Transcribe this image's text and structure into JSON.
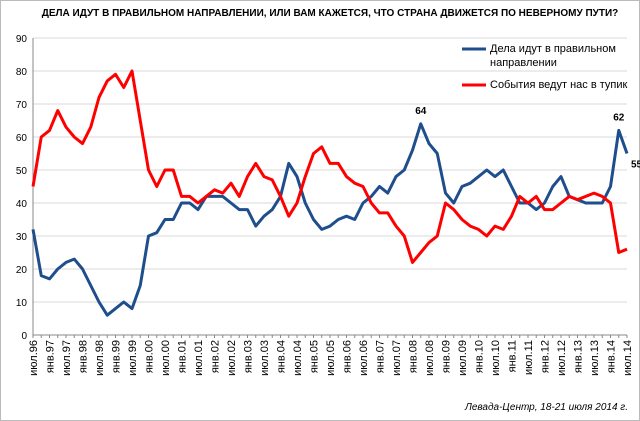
{
  "chart_data": {
    "type": "line",
    "title": "ДЕЛА ИДУТ В ПРАВИЛЬНОМ НАПРАВЛЕНИИ, ИЛИ ВАМ КАЖЕТСЯ, ЧТО СТРАНА ДВИЖЕТСЯ ПО НЕВЕРНОМУ ПУТИ?",
    "source": "Левада-Центр, 18-21 июля 2014 г.",
    "categories": [
      "июл.96",
      null,
      "янв.97",
      null,
      "июл.97",
      null,
      "янв.98",
      null,
      "июл.98",
      null,
      "янв.99",
      null,
      "июл.99",
      null,
      "янв.00",
      null,
      "июл.00",
      null,
      "янв.01",
      null,
      "июл.01",
      null,
      "янв.02",
      null,
      "июл.02",
      null,
      "янв.03",
      null,
      "июл.03",
      null,
      "янв.04",
      null,
      "июл.04",
      null,
      "янв.05",
      null,
      "июл.05",
      null,
      "янв.06",
      null,
      "июл.06",
      null,
      "янв.07",
      null,
      "июл.07",
      null,
      "янв.08",
      null,
      "июл.08",
      null,
      "янв.09",
      null,
      "июл.09",
      null,
      "янв.10",
      null,
      "июл.10",
      null,
      "янв.11",
      null,
      "июл.11",
      null,
      "янв.12",
      null,
      "июл.12",
      null,
      "янв.13",
      null,
      "июл.13",
      null,
      "янв.14",
      null,
      "июл.14"
    ],
    "series": [
      {
        "name": "Дела идут в правильном направлении",
        "color": "#1f4e8c",
        "values": [
          32,
          18,
          17,
          20,
          22,
          23,
          20,
          15,
          10,
          6,
          8,
          10,
          8,
          15,
          30,
          31,
          35,
          35,
          40,
          40,
          38,
          42,
          42,
          42,
          40,
          38,
          38,
          33,
          36,
          38,
          42,
          52,
          48,
          40,
          35,
          32,
          33,
          35,
          36,
          35,
          40,
          42,
          45,
          43,
          48,
          50,
          56,
          64,
          58,
          55,
          43,
          40,
          45,
          46,
          48,
          50,
          48,
          50,
          45,
          40,
          40,
          38,
          40,
          45,
          48,
          42,
          41,
          40,
          40,
          40,
          45,
          62,
          55
        ],
        "value_labels": [
          null,
          null,
          null,
          null,
          null,
          null,
          null,
          null,
          null,
          null,
          null,
          null,
          null,
          null,
          null,
          null,
          null,
          null,
          null,
          null,
          null,
          null,
          null,
          null,
          null,
          null,
          null,
          null,
          null,
          null,
          null,
          null,
          null,
          null,
          null,
          null,
          null,
          null,
          null,
          null,
          null,
          null,
          null,
          null,
          null,
          null,
          null,
          "64",
          null,
          null,
          null,
          null,
          null,
          null,
          null,
          null,
          null,
          null,
          null,
          null,
          null,
          null,
          null,
          null,
          null,
          null,
          null,
          null,
          null,
          null,
          null,
          "62",
          "55"
        ]
      },
      {
        "name": "События ведут нас в тупик",
        "color": "#ff0000",
        "values": [
          45,
          60,
          62,
          68,
          63,
          60,
          58,
          63,
          72,
          77,
          79,
          75,
          80,
          65,
          50,
          45,
          50,
          50,
          42,
          42,
          40,
          42,
          44,
          43,
          46,
          42,
          48,
          52,
          48,
          47,
          42,
          36,
          40,
          48,
          55,
          57,
          52,
          52,
          48,
          46,
          45,
          40,
          37,
          37,
          33,
          30,
          22,
          25,
          28,
          30,
          40,
          38,
          35,
          33,
          32,
          30,
          33,
          32,
          36,
          42,
          40,
          42,
          38,
          38,
          40,
          42,
          41,
          42,
          43,
          42,
          40,
          25,
          26
        ]
      }
    ],
    "ylim": [
      0,
      90
    ],
    "yticks": [
      0,
      10,
      20,
      30,
      40,
      50,
      60,
      70,
      80,
      90
    ],
    "grid": true,
    "legend": "top-right"
  }
}
